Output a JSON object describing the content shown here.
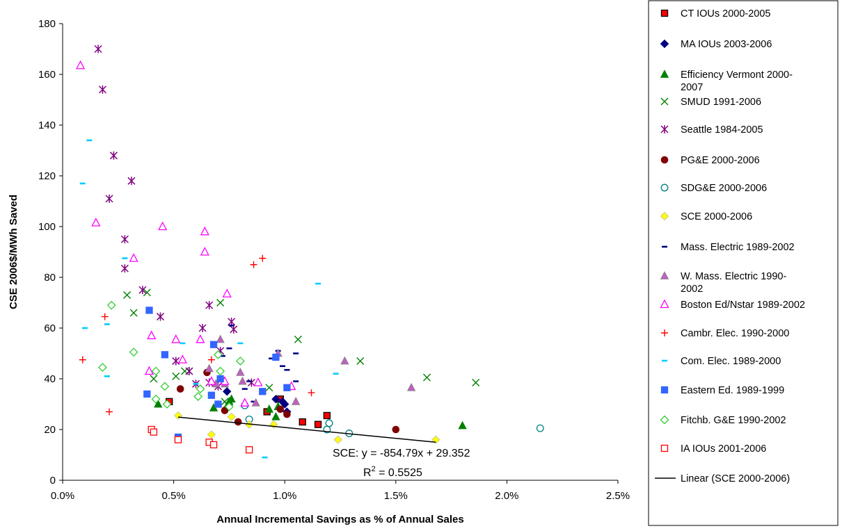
{
  "chart_data": {
    "type": "scatter",
    "xlabel": "Annual Incremental Savings as % of Annual Sales",
    "ylabel": "CSE 2006$/MWh Saved",
    "xlim": [
      0,
      2.5
    ],
    "ylim": [
      0,
      180
    ],
    "x_ticks": [
      "0.0%",
      "0.5%",
      "1.0%",
      "1.5%",
      "2.0%",
      "2.5%"
    ],
    "y_ticks": [
      "0",
      "20",
      "40",
      "60",
      "80",
      "100",
      "120",
      "140",
      "160",
      "180"
    ],
    "grid": false,
    "legend_position": "right",
    "annotations": [
      {
        "text": "SCE: y = -854.79x + 29.352"
      },
      {
        "text": "R",
        "sup": "2",
        "rest": " = 0.5525"
      }
    ],
    "trendline": {
      "name": "Linear (SCE 2000-2006)",
      "slope": -854.79,
      "intercept": 29.352,
      "x_range": [
        0.52,
        1.68
      ],
      "color": "#000000"
    },
    "series": [
      {
        "name": "CT IOUs 2000-2005",
        "marker": "square-filled",
        "color": "#FF0000",
        "stroke": "#000000",
        "points": [
          [
            0.48,
            31
          ],
          [
            0.92,
            27
          ],
          [
            0.98,
            32
          ],
          [
            1.08,
            23
          ],
          [
            1.15,
            22
          ],
          [
            1.19,
            25.5
          ]
        ]
      },
      {
        "name": "MA IOUs 2003-2006",
        "marker": "diamond-filled",
        "color": "#000080",
        "stroke": "#000080",
        "points": [
          [
            0.74,
            35
          ],
          [
            0.96,
            32
          ],
          [
            0.99,
            31
          ],
          [
            1.0,
            30
          ],
          [
            1.01,
            27
          ]
        ]
      },
      {
        "name": "Efficiency Vermont 2000-2007",
        "marker": "triangle-filled",
        "color": "#008000",
        "stroke": "#008000",
        "points": [
          [
            0.43,
            30
          ],
          [
            0.68,
            28.5
          ],
          [
            0.75,
            31
          ],
          [
            0.76,
            32
          ],
          [
            0.93,
            28
          ],
          [
            0.96,
            25
          ],
          [
            0.97,
            29
          ],
          [
            1.8,
            21.5
          ]
        ]
      },
      {
        "name": "SMUD 1991-2006",
        "marker": "x",
        "color": "#008000",
        "points": [
          [
            0.29,
            73
          ],
          [
            0.32,
            66
          ],
          [
            0.38,
            74
          ],
          [
            0.41,
            40
          ],
          [
            0.51,
            41
          ],
          [
            0.55,
            43
          ],
          [
            0.71,
            70
          ],
          [
            0.73,
            31
          ],
          [
            0.74,
            30
          ],
          [
            0.93,
            36.5
          ],
          [
            1.06,
            55.5
          ],
          [
            1.34,
            47
          ],
          [
            1.64,
            40.5
          ],
          [
            1.86,
            38.5
          ]
        ]
      },
      {
        "name": "Seattle 1984-2005",
        "marker": "asterisk",
        "color": "#800080",
        "points": [
          [
            0.16,
            170
          ],
          [
            0.18,
            154
          ],
          [
            0.21,
            111
          ],
          [
            0.23,
            128
          ],
          [
            0.28,
            95
          ],
          [
            0.28,
            83.5
          ],
          [
            0.31,
            118
          ],
          [
            0.36,
            75
          ],
          [
            0.44,
            64.5
          ],
          [
            0.51,
            47
          ],
          [
            0.57,
            43
          ],
          [
            0.6,
            38
          ],
          [
            0.63,
            60
          ],
          [
            0.66,
            69
          ],
          [
            0.66,
            38.5
          ],
          [
            0.7,
            37
          ],
          [
            0.71,
            51
          ],
          [
            0.76,
            62.5
          ],
          [
            0.77,
            59.5
          ],
          [
            0.85,
            38.5
          ]
        ]
      },
      {
        "name": "PG&E 2000-2006",
        "marker": "circle-filled",
        "color": "#800000",
        "stroke": "#800000",
        "points": [
          [
            0.53,
            36
          ],
          [
            0.65,
            42.5
          ],
          [
            0.73,
            27.5
          ],
          [
            0.79,
            23
          ],
          [
            0.98,
            28
          ],
          [
            1.01,
            26
          ],
          [
            1.5,
            20
          ]
        ]
      },
      {
        "name": "SDG&E 2000-2006",
        "marker": "circle-open",
        "color": "#008080",
        "points": [
          [
            0.82,
            29.5
          ],
          [
            0.84,
            24
          ],
          [
            1.19,
            20
          ],
          [
            1.2,
            22.5
          ],
          [
            1.29,
            18.5
          ],
          [
            2.15,
            20.5
          ]
        ]
      },
      {
        "name": "SCE 2000-2006",
        "marker": "diamond-filled",
        "color": "#FFFF00",
        "stroke": "#C8C8A0",
        "points": [
          [
            0.52,
            25.5
          ],
          [
            0.67,
            18
          ],
          [
            0.76,
            25
          ],
          [
            0.84,
            22
          ],
          [
            0.95,
            22
          ],
          [
            1.24,
            16
          ],
          [
            1.68,
            16
          ]
        ]
      },
      {
        "name": "Mass. Electric 1989-2002",
        "marker": "dash",
        "color": "#000080",
        "points": [
          [
            0.72,
            49
          ],
          [
            0.75,
            52
          ],
          [
            0.76,
            61
          ],
          [
            0.82,
            36
          ],
          [
            0.84,
            39
          ],
          [
            0.86,
            31
          ],
          [
            0.94,
            48
          ],
          [
            0.97,
            51
          ],
          [
            0.99,
            45
          ],
          [
            1.01,
            43.5
          ],
          [
            1.05,
            39
          ],
          [
            1.05,
            50
          ]
        ]
      },
      {
        "name": "W. Mass. Electric 1990-2002",
        "marker": "triangle-filled",
        "color": "#C060C0",
        "stroke": "#808080",
        "points": [
          [
            0.66,
            44
          ],
          [
            0.69,
            38
          ],
          [
            0.71,
            55.5
          ],
          [
            0.73,
            38
          ],
          [
            0.8,
            42.5
          ],
          [
            0.81,
            39
          ],
          [
            0.87,
            30.5
          ],
          [
            0.97,
            50
          ],
          [
            1.05,
            31
          ],
          [
            1.27,
            47
          ],
          [
            1.57,
            36.5
          ]
        ]
      },
      {
        "name": "Boston Ed/Nstar 1989-2002",
        "marker": "triangle-open",
        "color": "#FF00FF",
        "points": [
          [
            0.08,
            163.5
          ],
          [
            0.15,
            101.5
          ],
          [
            0.32,
            87.5
          ],
          [
            0.39,
            43
          ],
          [
            0.4,
            57
          ],
          [
            0.45,
            100
          ],
          [
            0.51,
            55.5
          ],
          [
            0.54,
            47.5
          ],
          [
            0.62,
            55.5
          ],
          [
            0.64,
            90
          ],
          [
            0.64,
            98
          ],
          [
            0.67,
            39
          ],
          [
            0.73,
            39
          ],
          [
            0.74,
            73.5
          ],
          [
            0.82,
            30.5
          ],
          [
            0.88,
            38.5
          ],
          [
            1.03,
            37
          ]
        ]
      },
      {
        "name": "Cambr. Elec. 1990-2000",
        "marker": "plus",
        "color": "#FF0000",
        "points": [
          [
            0.09,
            47.5
          ],
          [
            0.19,
            64.5
          ],
          [
            0.21,
            27
          ],
          [
            0.67,
            47.5
          ],
          [
            0.86,
            85
          ],
          [
            0.9,
            87.5
          ],
          [
            1.12,
            34.5
          ]
        ]
      },
      {
        "name": "Com. Elec. 1989-2000",
        "marker": "dash",
        "color": "#00CCFF",
        "points": [
          [
            0.09,
            117
          ],
          [
            0.1,
            60
          ],
          [
            0.12,
            134
          ],
          [
            0.2,
            61.5
          ],
          [
            0.2,
            41
          ],
          [
            0.28,
            87.5
          ],
          [
            0.54,
            54
          ],
          [
            0.6,
            38
          ],
          [
            0.8,
            54
          ],
          [
            0.91,
            9
          ],
          [
            1.15,
            77.5
          ],
          [
            1.23,
            42
          ]
        ]
      },
      {
        "name": "Eastern Ed. 1989-1999",
        "marker": "square-filled",
        "color": "#3366FF",
        "stroke": "#3366FF",
        "points": [
          [
            0.38,
            34
          ],
          [
            0.39,
            67
          ],
          [
            0.46,
            49.5
          ],
          [
            0.52,
            17
          ],
          [
            0.67,
            33.5
          ],
          [
            0.68,
            53.5
          ],
          [
            0.7,
            30
          ],
          [
            0.71,
            40
          ],
          [
            0.9,
            35
          ],
          [
            0.96,
            48.5
          ],
          [
            1.01,
            36.5
          ]
        ]
      },
      {
        "name": "Fitchb. G&E 1990-2002",
        "marker": "diamond-open",
        "color": "#33CC33",
        "points": [
          [
            0.18,
            44.5
          ],
          [
            0.22,
            69
          ],
          [
            0.32,
            50.5
          ],
          [
            0.42,
            43
          ],
          [
            0.42,
            32
          ],
          [
            0.46,
            37
          ],
          [
            0.47,
            30
          ],
          [
            0.61,
            33
          ],
          [
            0.62,
            36
          ],
          [
            0.7,
            49.5
          ],
          [
            0.71,
            43
          ],
          [
            0.75,
            29
          ],
          [
            0.8,
            47
          ]
        ]
      },
      {
        "name": "IA IOUs 2001-2006",
        "marker": "square-open",
        "color": "#FF0000",
        "points": [
          [
            0.4,
            20
          ],
          [
            0.41,
            19
          ],
          [
            0.52,
            16
          ],
          [
            0.66,
            15
          ],
          [
            0.68,
            14
          ],
          [
            0.84,
            12
          ]
        ]
      }
    ]
  }
}
